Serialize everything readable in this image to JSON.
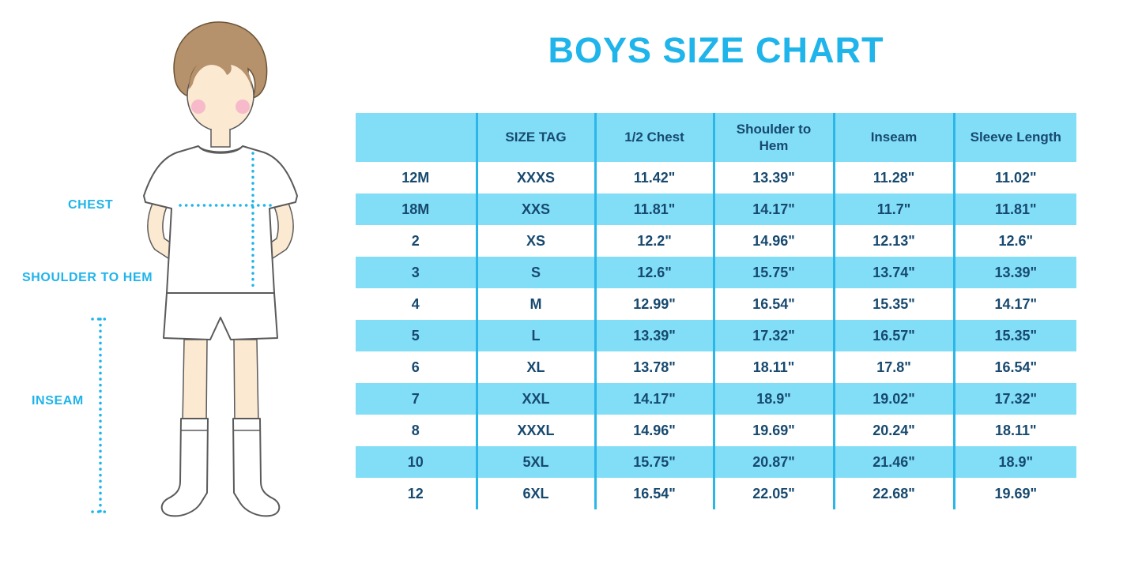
{
  "title": "BOYS SIZE CHART",
  "figure": {
    "labels": {
      "chest": "CHEST",
      "shoulder_to_hem": "SHOULDER TO HEM",
      "inseam": "INSEAM"
    }
  },
  "colors": {
    "accent_cyan": "#1FB4EA",
    "row_fill_blue": "#82DEF6",
    "table_line_cyan": "#2AB6E9",
    "text_navy": "#17496F"
  },
  "chart_data": {
    "type": "table",
    "title": "BOYS SIZE CHART",
    "columns": [
      "",
      "SIZE TAG",
      "1/2 Chest",
      "Shoulder to Hem",
      "Inseam",
      "Sleeve Length"
    ],
    "rows": [
      [
        "12M",
        "XXXS",
        "11.42\"",
        "13.39\"",
        "11.28\"",
        "11.02\""
      ],
      [
        "18M",
        "XXS",
        "11.81\"",
        "14.17\"",
        "11.7\"",
        "11.81\""
      ],
      [
        "2",
        "XS",
        "12.2\"",
        "14.96\"",
        "12.13\"",
        "12.6\""
      ],
      [
        "3",
        "S",
        "12.6\"",
        "15.75\"",
        "13.74\"",
        "13.39\""
      ],
      [
        "4",
        "M",
        "12.99\"",
        "16.54\"",
        "15.35\"",
        "14.17\""
      ],
      [
        "5",
        "L",
        "13.39\"",
        "17.32\"",
        "16.57\"",
        "15.35\""
      ],
      [
        "6",
        "XL",
        "13.78\"",
        "18.11\"",
        "17.8\"",
        "16.54\""
      ],
      [
        "7",
        "XXL",
        "14.17\"",
        "18.9\"",
        "19.02\"",
        "17.32\""
      ],
      [
        "8",
        "XXXL",
        "14.96\"",
        "19.69\"",
        "20.24\"",
        "18.11\""
      ],
      [
        "10",
        "5XL",
        "15.75\"",
        "20.87\"",
        "21.46\"",
        "18.9\""
      ],
      [
        "12",
        "6XL",
        "16.54\"",
        "22.05\"",
        "22.68\"",
        "19.69\""
      ]
    ],
    "layout": {
      "grid": "vertical cyan separators, alternating light-blue row stripes",
      "legend": "none"
    }
  }
}
